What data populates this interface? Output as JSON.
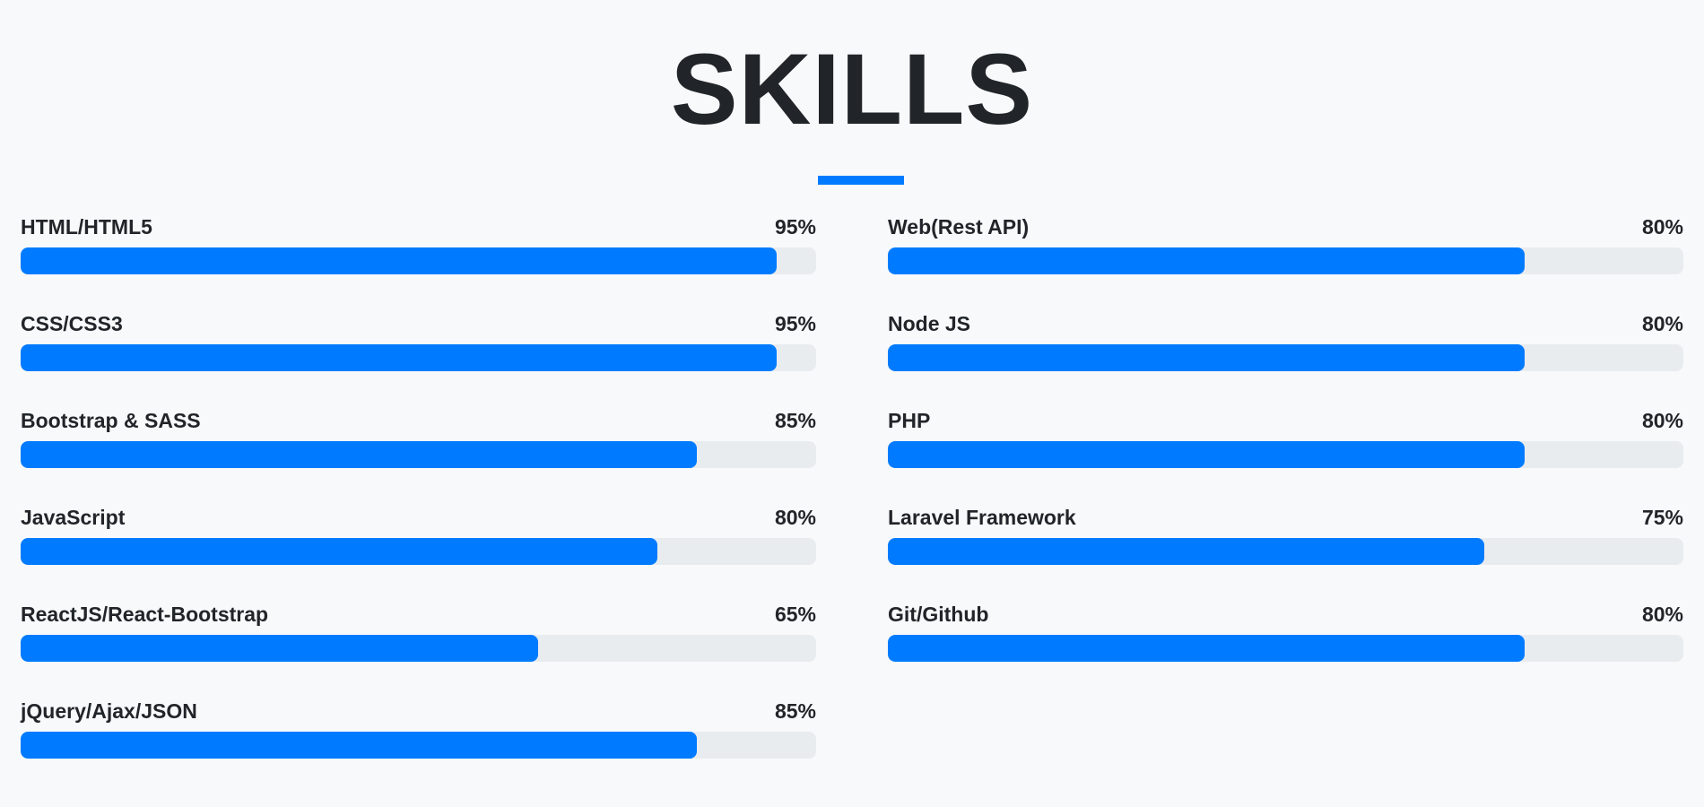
{
  "section": {
    "title": "SKILLS"
  },
  "colors": {
    "accent": "#007bff",
    "track": "#e9ecef",
    "background": "#f8f9fa",
    "text": "#212529"
  },
  "skills_left": [
    {
      "name": "HTML/HTML5",
      "percent_label": "95%",
      "value": 95
    },
    {
      "name": "CSS/CSS3",
      "percent_label": "95%",
      "value": 95
    },
    {
      "name": "Bootstrap & SASS",
      "percent_label": "85%",
      "value": 85
    },
    {
      "name": "JavaScript",
      "percent_label": "80%",
      "value": 80
    },
    {
      "name": "ReactJS/React-Bootstrap",
      "percent_label": "65%",
      "value": 65
    },
    {
      "name": "jQuery/Ajax/JSON",
      "percent_label": "85%",
      "value": 85
    }
  ],
  "skills_right": [
    {
      "name": "Web(Rest API)",
      "percent_label": "80%",
      "value": 80
    },
    {
      "name": "Node JS",
      "percent_label": "80%",
      "value": 80
    },
    {
      "name": "PHP",
      "percent_label": "80%",
      "value": 80
    },
    {
      "name": "Laravel Framework",
      "percent_label": "75%",
      "value": 75
    },
    {
      "name": "Git/Github",
      "percent_label": "80%",
      "value": 80
    }
  ]
}
